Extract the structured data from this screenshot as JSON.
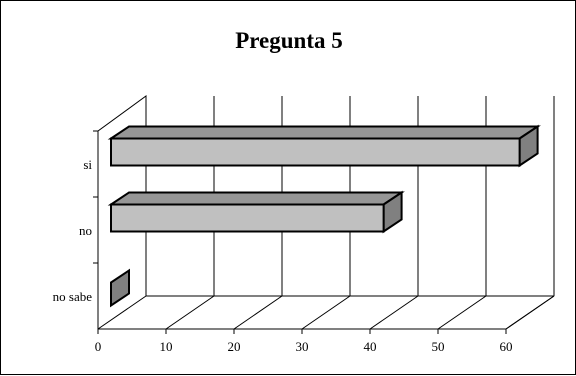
{
  "chart_data": {
    "type": "bar",
    "orientation": "horizontal",
    "three_d": true,
    "title": "Pregunta 5",
    "categories": [
      "si",
      "no",
      "no sabe"
    ],
    "values": [
      62,
      42,
      1
    ],
    "xlim": [
      0,
      60
    ],
    "xticks": [
      0,
      10,
      20,
      30,
      40,
      50,
      60
    ],
    "grid": true,
    "legend": "none",
    "colors": {
      "bar_face": "#c0c0c0",
      "bar_side": "#808080",
      "bar_top": "#969696",
      "grid": "#000000"
    }
  }
}
